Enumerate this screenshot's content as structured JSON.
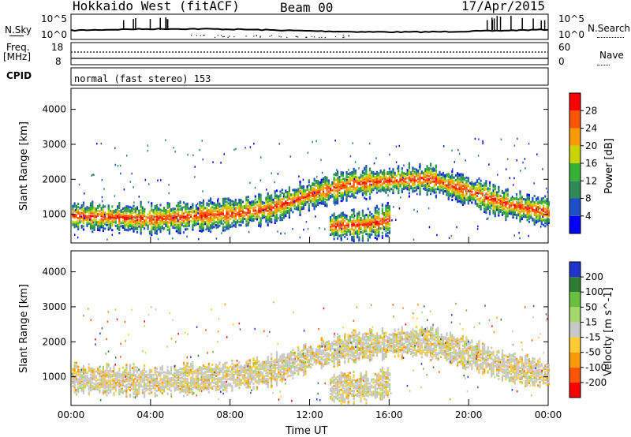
{
  "header": {
    "station": "Hokkaido West (fitACF)",
    "beam": "Beam 00",
    "date": "17/Apr/2015"
  },
  "noise_panel": {
    "left_label": "N.Sky",
    "right_label": "N.Search",
    "left_ticks": [
      "10^5",
      "10^0"
    ],
    "right_ticks": [
      "10^5",
      "10^0"
    ]
  },
  "freq_panel": {
    "left_label_1": "Freq.",
    "left_label_2": "[MHz]",
    "right_label": "Nave",
    "left_ticks": [
      "18",
      "8"
    ],
    "right_ticks": [
      "60",
      "0"
    ]
  },
  "cpid": {
    "label": "CPID",
    "value": "normal (fast stereo) 153"
  },
  "chart_data": [
    {
      "type": "heatmap",
      "title": "",
      "ylabel": "Slant Range [km]",
      "ylim": [
        180,
        4600
      ],
      "yticks": [
        "1000",
        "2000",
        "3000",
        "4000"
      ],
      "colorbar_label": "Power [dB]",
      "colorbar_ticks": [
        "4",
        "8",
        "12",
        "16",
        "20",
        "24",
        "28"
      ],
      "colorbar_colors": [
        "#0000ff",
        "#1f4fc8",
        "#2e8b57",
        "#34b233",
        "#c8d400",
        "#ff9900",
        "#ff5500",
        "#ff0000"
      ],
      "main_band_km": [
        [
          0,
          1000
        ],
        [
          4,
          900
        ],
        [
          8,
          1050
        ],
        [
          10,
          1200
        ],
        [
          12,
          1600
        ],
        [
          14,
          1900
        ],
        [
          16,
          2000
        ],
        [
          18,
          2050
        ],
        [
          20,
          1700
        ],
        [
          22,
          1300
        ],
        [
          24,
          1100
        ]
      ],
      "secondary_band_km": [
        [
          13,
          700
        ],
        [
          15,
          750
        ],
        [
          16,
          900
        ]
      ]
    },
    {
      "type": "heatmap",
      "title": "",
      "ylabel": "Slant Range [km]",
      "xlabel": "Time UT",
      "ylim": [
        180,
        4600
      ],
      "yticks": [
        "1000",
        "2000",
        "3000",
        "4000"
      ],
      "xticks": [
        "00:00",
        "04:00",
        "08:00",
        "12:00",
        "16:00",
        "20:00",
        "00:00"
      ],
      "colorbar_label": "Velocity [m s^-1]",
      "colorbar_ticks": [
        "200",
        "100",
        "50",
        "15",
        "-15",
        "-50",
        "-100",
        "-200"
      ],
      "colorbar_colors": [
        "#2233cc",
        "#2e7d32",
        "#6abf40",
        "#a5d86b",
        "#c8c8c8",
        "#ffcc33",
        "#ff9900",
        "#ff5500",
        "#ff0000"
      ]
    }
  ]
}
